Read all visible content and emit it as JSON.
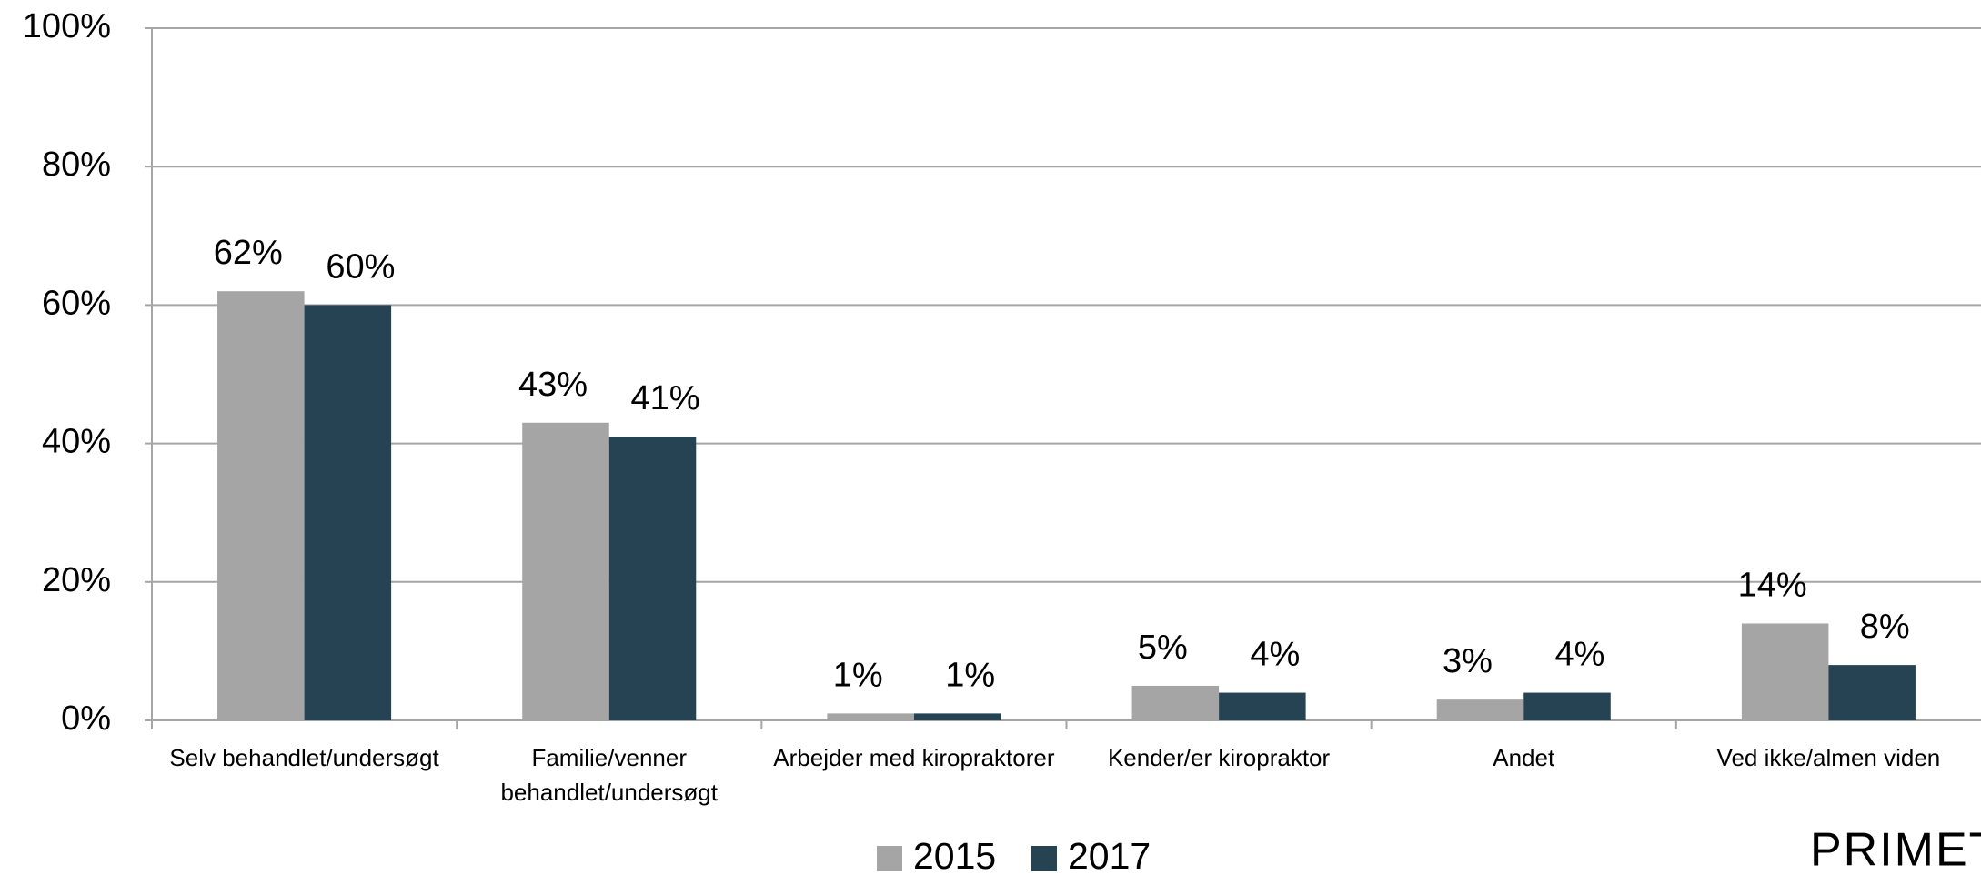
{
  "chart_data": {
    "type": "bar",
    "categories": [
      "Selv behandlet/undersøgt",
      "Familie/venner behandlet/undersøgt",
      "Arbejder med kiropraktorer",
      "Kender/er kiropraktor",
      "Andet",
      "Ved ikke/almen viden"
    ],
    "series": [
      {
        "name": "2015",
        "color": "#a5a5a5",
        "values": [
          62,
          43,
          1,
          5,
          3,
          14
        ],
        "value_labels": [
          "62%",
          "43%",
          "1%",
          "5%",
          "3%",
          "14%"
        ]
      },
      {
        "name": "2017",
        "color": "#264353",
        "values": [
          60,
          41,
          1,
          4,
          4,
          8
        ],
        "value_labels": [
          "60%",
          "41%",
          "1%",
          "4%",
          "4%",
          "8%"
        ]
      }
    ],
    "ylim": [
      0,
      100
    ],
    "yticks": [
      {
        "value": 0,
        "label": "0%"
      },
      {
        "value": 20,
        "label": "20%"
      },
      {
        "value": 40,
        "label": "40%"
      },
      {
        "value": 60,
        "label": "60%"
      },
      {
        "value": 80,
        "label": "80%"
      },
      {
        "value": 100,
        "label": "100%"
      }
    ],
    "grid": true,
    "legend": "bottom",
    "logo": "PRIMET"
  }
}
